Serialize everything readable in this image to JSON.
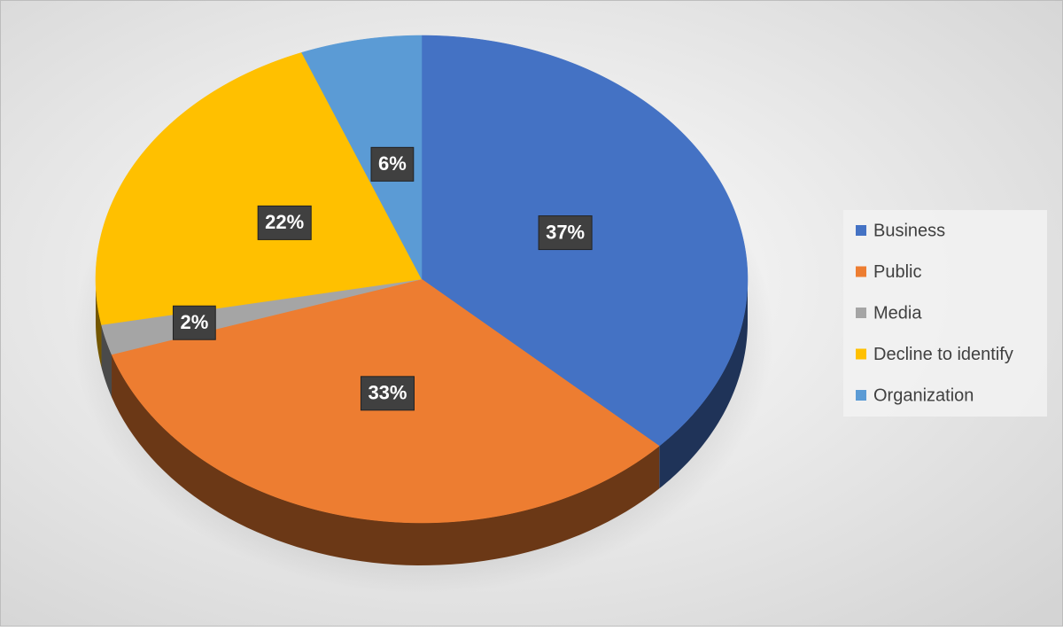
{
  "chart_data": {
    "type": "pie",
    "categories": [
      "Business",
      "Public",
      "Media",
      "Decline to identify",
      "Organization"
    ],
    "values": [
      37,
      33,
      2,
      22,
      6
    ],
    "value_labels": [
      "37%",
      "33%",
      "2%",
      "22%",
      "6%"
    ],
    "colors": [
      "#4472c4",
      "#ed7d31",
      "#a5a5a5",
      "#ffc000",
      "#5b9bd5"
    ],
    "legend": "right"
  }
}
